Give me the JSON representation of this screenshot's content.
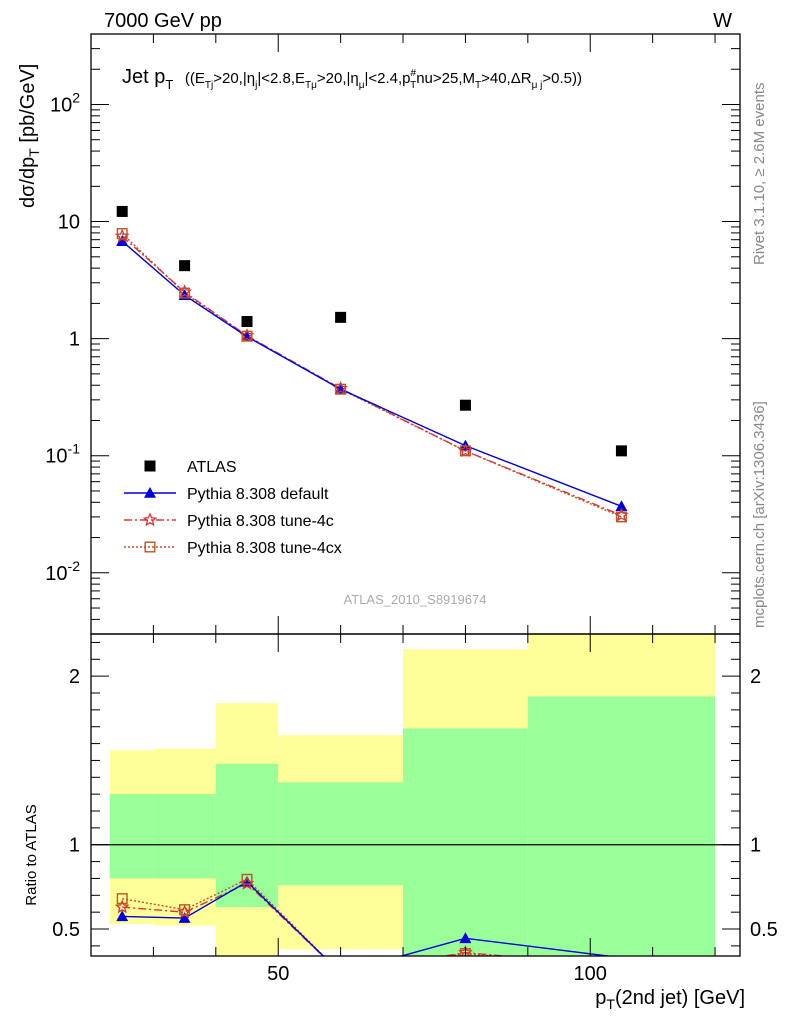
{
  "header": {
    "energy_label": "7000 GeV pp",
    "process_label": "W",
    "analysis_id": "ATLAS_2010_S8919674"
  },
  "side_labels": {
    "rivet": "Rivet 3.1.10, ≥ 2.6M events",
    "mcplots": "mcplots.cern.ch [arXiv:1306.3436]"
  },
  "chart_data": [
    {
      "type": "scatter",
      "title": "Jet pT ((ETj>20,|ηj|<2.8,ETμ>20,|ημ|<2.4,pT#nu>25,MT>40,ΔRμ j>0.5))",
      "title_parts": {
        "main": "Jet p",
        "main_sub": "T",
        "cuts": "((E",
        "c1_sub": "Tj",
        "c2": ">20,|η",
        "c2_sub": "j",
        "c3": "|<2.8,E",
        "c3_sub": "Tμ",
        "c4": ">20,|η",
        "c4_sub": "μ",
        "c5": "|<2.4,p",
        "c5_sup": "#",
        "c5_sub": "T",
        "c6": "nu>25,M",
        "c6_sub": "T",
        "c7": ">40,ΔR",
        "c7_sub": "μ j",
        "c8": ">0.5))"
      },
      "ylabel": "dσ/dp_T [pb/GeV]",
      "ylabel_parts": {
        "a": "dσ/dp",
        "sub": "T",
        "b": " [pb/GeV]"
      },
      "yscale": "log",
      "xlim": [
        20,
        124
      ],
      "ylim": [
        0.003,
        400
      ],
      "ytick_labels": [
        {
          "value": 0.01,
          "base": "10",
          "exp": "-2"
        },
        {
          "value": 0.1,
          "base": "10",
          "exp": "-1"
        },
        {
          "value": 1,
          "base": "1",
          "exp": ""
        },
        {
          "value": 10,
          "base": "10",
          "exp": ""
        },
        {
          "value": 100,
          "base": "10",
          "exp": "2"
        }
      ],
      "legend_position": "bottom-left",
      "series": [
        {
          "name": "ATLAS",
          "marker": "square",
          "color": "#000000",
          "x": [
            25,
            35,
            45,
            60,
            80,
            105
          ],
          "y": [
            12.2,
            4.2,
            1.4,
            1.52,
            0.27,
            0.11
          ]
        },
        {
          "name": "Pythia 8.308 default",
          "marker": "triangle",
          "color": "#0000dd",
          "line": "solid",
          "x": [
            25,
            35,
            45,
            60,
            80,
            105
          ],
          "y": [
            6.8,
            2.35,
            1.04,
            0.37,
            0.122,
            0.037
          ]
        },
        {
          "name": "Pythia 8.308 tune-4c",
          "marker": "star",
          "color": "#dd3333",
          "line": "dashdot",
          "x": [
            25,
            35,
            45,
            60,
            80,
            105
          ],
          "y": [
            7.5,
            2.5,
            1.06,
            0.375,
            0.11,
            0.031
          ]
        },
        {
          "name": "Pythia 8.308 tune-4cx",
          "marker": "open-square",
          "color": "#bb5522",
          "line": "dotted",
          "x": [
            25,
            35,
            45,
            60,
            80,
            105
          ],
          "y": [
            7.9,
            2.45,
            1.05,
            0.37,
            0.11,
            0.03
          ]
        }
      ]
    },
    {
      "type": "line",
      "ylabel": "Ratio to ATLAS",
      "xlabel": "p_T(2nd jet) [GeV]",
      "xlabel_parts": {
        "a": "p",
        "sub": "T",
        "b": "(2nd jet) [GeV]"
      },
      "xlim": [
        20,
        124
      ],
      "ylim": [
        0.34,
        2.25
      ],
      "xtick_labels": [
        {
          "value": 50,
          "label": "50"
        },
        {
          "value": 100,
          "label": "100"
        }
      ],
      "ytick_labels": [
        {
          "value": 0.5,
          "label": "0.5"
        },
        {
          "value": 1,
          "label": "1"
        },
        {
          "value": 2,
          "label": "2"
        }
      ],
      "reference_line": 1,
      "bands": [
        {
          "x0": 20,
          "x1": 30,
          "inner": [
            0.8,
            1.3
          ],
          "outer": [
            0.53,
            1.56
          ]
        },
        {
          "x0": 30,
          "x1": 40,
          "inner": [
            0.8,
            1.3
          ],
          "outer": [
            0.52,
            1.57
          ]
        },
        {
          "x0": 40,
          "x1": 50,
          "inner": [
            0.63,
            1.48
          ],
          "outer": [
            0.3,
            1.84
          ]
        },
        {
          "x0": 50,
          "x1": 70,
          "inner": [
            0.76,
            1.37
          ],
          "outer": [
            0.38,
            1.65
          ]
        },
        {
          "x0": 70,
          "x1": 90,
          "inner": [
            0.3,
            1.69
          ],
          "outer": [
            0.3,
            2.16
          ]
        },
        {
          "x0": 90,
          "x1": 124,
          "inner": [
            0.3,
            1.88
          ],
          "outer": [
            0.3,
            2.3
          ]
        }
      ],
      "band_colors": {
        "inner": "#99ff99",
        "outer": "#ffff99"
      },
      "series": [
        {
          "name": "Pythia 8.308 default",
          "color": "#0000dd",
          "x": [
            25,
            35,
            45,
            60,
            80,
            105
          ],
          "y": [
            0.575,
            0.565,
            0.78,
            0.24,
            0.445,
            0.33
          ]
        },
        {
          "name": "Pythia 8.308 tune-4c",
          "color": "#dd3333",
          "x": [
            25,
            35,
            45,
            60,
            80,
            105
          ],
          "y": [
            0.63,
            0.6,
            0.77,
            0.24,
            0.36,
            0.28
          ]
        },
        {
          "name": "Pythia 8.308 tune-4cx",
          "color": "#bb5522",
          "x": [
            25,
            35,
            45,
            60,
            80,
            105
          ],
          "y": [
            0.68,
            0.615,
            0.795,
            0.24,
            0.355,
            0.27
          ]
        }
      ]
    }
  ]
}
